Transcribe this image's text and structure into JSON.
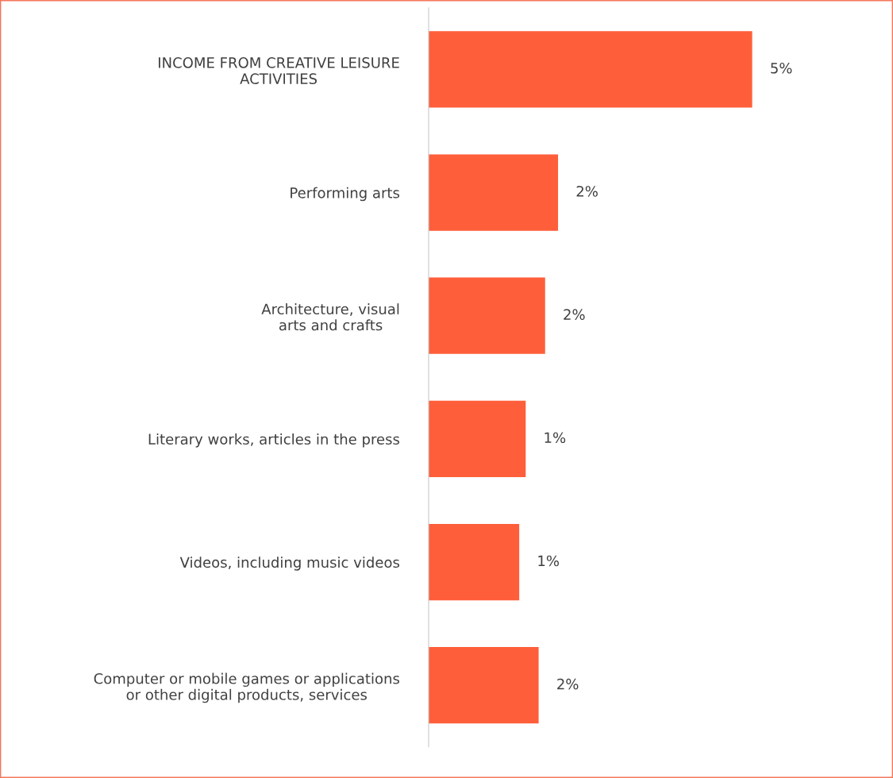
{
  "chart_data": {
    "type": "bar",
    "orientation": "horizontal",
    "categories": [
      "INCOME FROM CREATIVE LEISURE\nACTIVITIES",
      "Performing arts",
      "Architecture, visual\narts and crafts",
      "Literary works, articles in the press",
      "Videos, including music videos",
      "Computer or mobile games or applications\nor other digital products, services"
    ],
    "values": [
      5.0,
      2.0,
      1.8,
      1.5,
      1.4,
      1.7
    ],
    "value_labels": [
      "5%",
      "2%",
      "2%",
      "1%",
      "1%",
      "2%"
    ],
    "color": "#ff5e3a",
    "grid": false,
    "legend": false
  }
}
